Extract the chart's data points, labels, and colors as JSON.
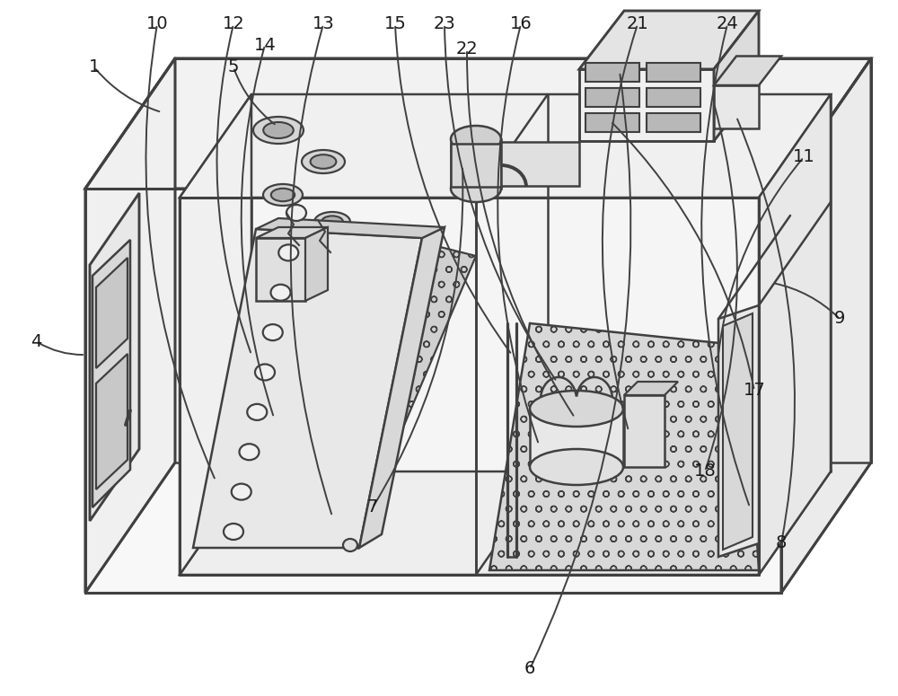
{
  "bg_color": "#ffffff",
  "lc": "#404040",
  "lw": 1.8,
  "tlw": 2.2
}
